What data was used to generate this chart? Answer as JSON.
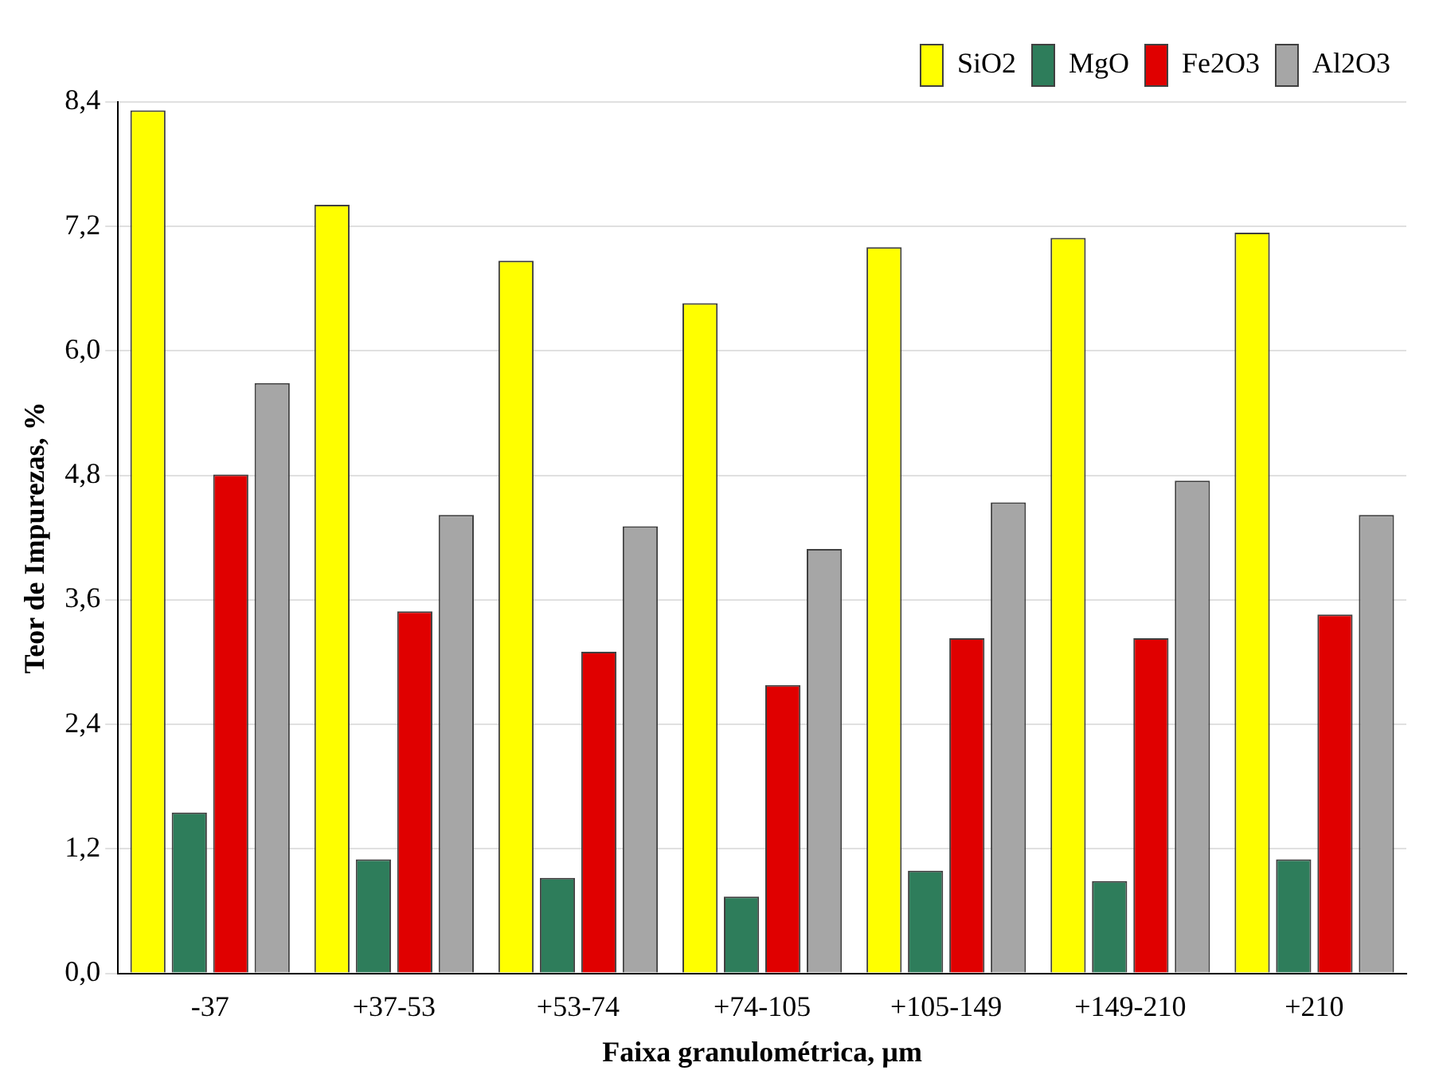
{
  "chart_data": {
    "type": "bar",
    "xlabel": "Faixa granulométrica, µm",
    "ylabel": "Teor de Impurezas, %",
    "categories": [
      "-37",
      "+37-53",
      "+53-74",
      "+74-105",
      "+105-149",
      "+149-210",
      "+210"
    ],
    "series": [
      {
        "name": "SiO2",
        "color": "#ffff00",
        "values": [
          8.32,
          7.41,
          6.87,
          6.46,
          7.0,
          7.09,
          7.14
        ]
      },
      {
        "name": "MgO",
        "color": "#2e7d5b",
        "values": [
          1.55,
          1.1,
          0.92,
          0.74,
          0.99,
          0.89,
          1.1
        ]
      },
      {
        "name": "Fe2O3",
        "color": "#e00000",
        "values": [
          4.81,
          3.49,
          3.1,
          2.78,
          3.23,
          3.23,
          3.46
        ]
      },
      {
        "name": "Al2O3",
        "color": "#a6a6a6",
        "values": [
          5.69,
          4.42,
          4.31,
          4.09,
          4.54,
          4.75,
          4.42
        ]
      }
    ],
    "ylim": [
      0,
      8.4
    ],
    "yticks": [
      {
        "value": 0,
        "label": "0,0"
      },
      {
        "value": 1.2,
        "label": "1,2"
      },
      {
        "value": 2.4,
        "label": "2,4"
      },
      {
        "value": 3.6,
        "label": "3,6"
      },
      {
        "value": 4.8,
        "label": "4,8"
      },
      {
        "value": 6,
        "label": "6,0"
      },
      {
        "value": 7.2,
        "label": "7,2"
      },
      {
        "value": 8.4,
        "label": "8,4"
      }
    ],
    "grid": "y",
    "legend": "top right"
  }
}
